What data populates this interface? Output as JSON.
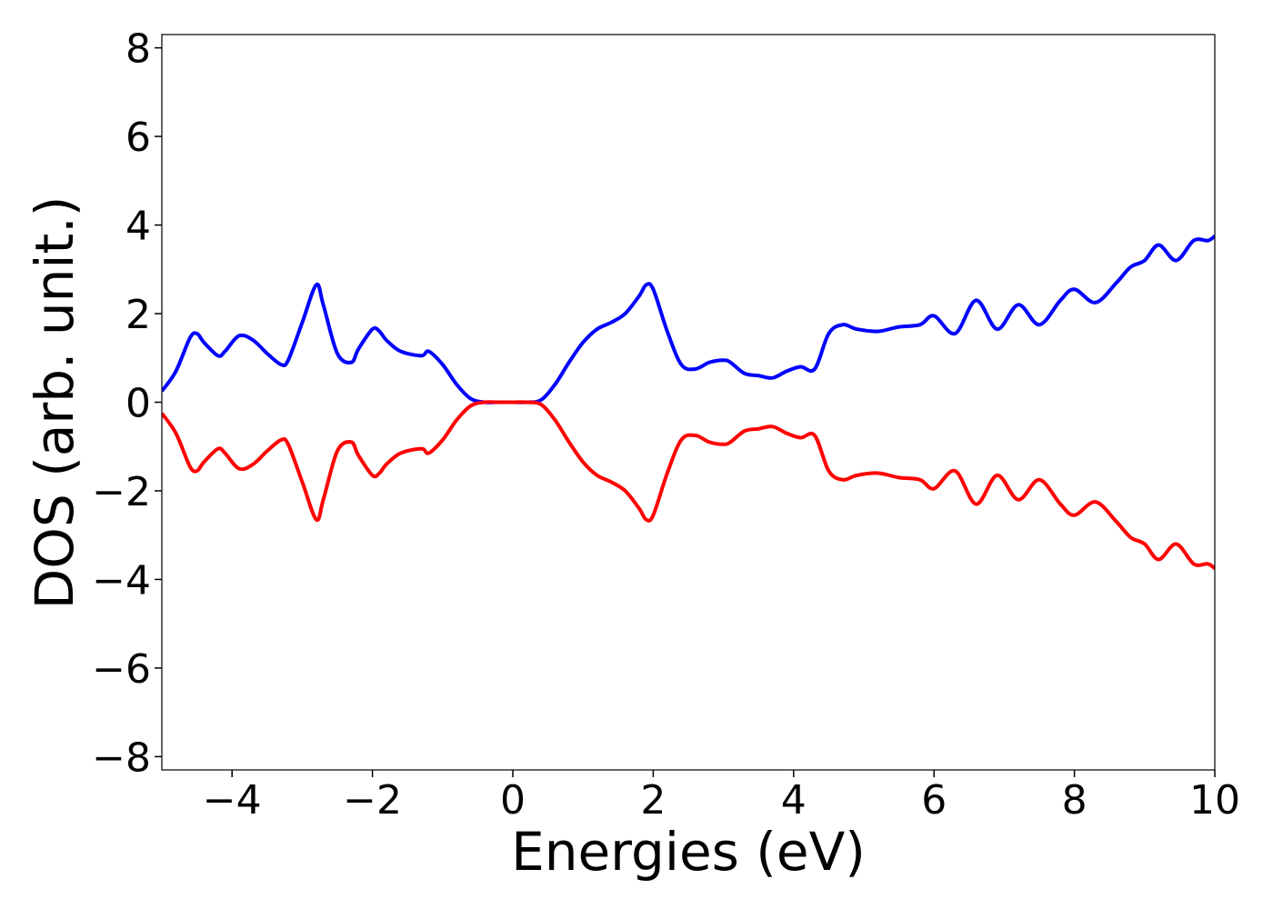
{
  "chart_data": {
    "type": "line",
    "title": "",
    "xlabel": "Energies (eV)",
    "ylabel": "DOS (arb. unit.)",
    "xlim": [
      -5,
      10
    ],
    "ylim": [
      -8.3,
      8.3
    ],
    "xticks": [
      -4,
      -2,
      0,
      2,
      4,
      6,
      8,
      10
    ],
    "xtick_labels": [
      "−4",
      "−2",
      "0",
      "2",
      "4",
      "6",
      "8",
      "10"
    ],
    "yticks": [
      8,
      6,
      4,
      2,
      0,
      -2,
      -4,
      -6,
      -8
    ],
    "ytick_labels": [
      "8",
      "6",
      "4",
      "2",
      "0",
      "−2",
      "−4",
      "−6",
      "−8"
    ],
    "grid": false,
    "legend": false,
    "series": [
      {
        "color": "#0000ff",
        "x": [
          -5.0,
          -4.8,
          -4.6,
          -4.5,
          -4.4,
          -4.2,
          -4.1,
          -3.9,
          -3.7,
          -3.5,
          -3.3,
          -3.2,
          -3.0,
          -2.8,
          -2.7,
          -2.5,
          -2.3,
          -2.2,
          -2.0,
          -1.9,
          -1.8,
          -1.6,
          -1.3,
          -1.2,
          -1.0,
          -0.8,
          -0.6,
          -0.4,
          -0.2,
          0.0,
          0.2,
          0.4,
          0.6,
          0.8,
          1.0,
          1.2,
          1.4,
          1.6,
          1.8,
          1.9,
          2.0,
          2.2,
          2.4,
          2.6,
          2.8,
          3.0,
          3.1,
          3.3,
          3.5,
          3.7,
          3.9,
          4.1,
          4.3,
          4.5,
          4.7,
          4.9,
          5.2,
          5.5,
          5.8,
          6.0,
          6.3,
          6.6,
          6.9,
          7.2,
          7.5,
          7.8,
          8.0,
          8.3,
          8.6,
          8.8,
          9.0,
          9.2,
          9.45,
          9.7,
          9.9,
          10.0
        ],
        "y": [
          0.25,
          0.7,
          1.45,
          1.55,
          1.35,
          1.05,
          1.15,
          1.5,
          1.4,
          1.1,
          0.85,
          0.95,
          1.8,
          2.65,
          2.2,
          1.1,
          0.9,
          1.2,
          1.65,
          1.6,
          1.4,
          1.15,
          1.05,
          1.15,
          0.85,
          0.4,
          0.08,
          0.0,
          0.0,
          0.0,
          0.0,
          0.05,
          0.4,
          0.9,
          1.35,
          1.65,
          1.8,
          2.0,
          2.4,
          2.65,
          2.55,
          1.6,
          0.85,
          0.75,
          0.9,
          0.95,
          0.9,
          0.65,
          0.6,
          0.55,
          0.7,
          0.8,
          0.75,
          1.55,
          1.75,
          1.65,
          1.6,
          1.7,
          1.75,
          1.95,
          1.55,
          2.3,
          1.65,
          2.2,
          1.75,
          2.3,
          2.55,
          2.25,
          2.7,
          3.05,
          3.2,
          3.55,
          3.2,
          3.65,
          3.65,
          3.75
        ]
      },
      {
        "color": "#ff0000",
        "x": [
          -5.0,
          -4.8,
          -4.6,
          -4.5,
          -4.4,
          -4.2,
          -4.1,
          -3.9,
          -3.7,
          -3.5,
          -3.3,
          -3.2,
          -3.0,
          -2.8,
          -2.7,
          -2.5,
          -2.3,
          -2.2,
          -2.0,
          -1.9,
          -1.8,
          -1.6,
          -1.3,
          -1.2,
          -1.0,
          -0.8,
          -0.6,
          -0.4,
          -0.2,
          0.0,
          0.2,
          0.4,
          0.6,
          0.8,
          1.0,
          1.2,
          1.4,
          1.6,
          1.8,
          1.9,
          2.0,
          2.2,
          2.4,
          2.6,
          2.8,
          3.0,
          3.1,
          3.3,
          3.5,
          3.7,
          3.9,
          4.1,
          4.3,
          4.5,
          4.7,
          4.9,
          5.2,
          5.5,
          5.8,
          6.0,
          6.3,
          6.6,
          6.9,
          7.2,
          7.5,
          7.8,
          8.0,
          8.3,
          8.6,
          8.8,
          9.0,
          9.2,
          9.45,
          9.7,
          9.9,
          10.0
        ],
        "y": [
          -0.25,
          -0.7,
          -1.45,
          -1.55,
          -1.35,
          -1.05,
          -1.15,
          -1.5,
          -1.4,
          -1.1,
          -0.85,
          -0.95,
          -1.8,
          -2.65,
          -2.2,
          -1.1,
          -0.9,
          -1.2,
          -1.65,
          -1.6,
          -1.4,
          -1.15,
          -1.05,
          -1.15,
          -0.85,
          -0.4,
          -0.08,
          0.0,
          0.0,
          0.0,
          0.0,
          -0.05,
          -0.4,
          -0.9,
          -1.35,
          -1.65,
          -1.8,
          -2.0,
          -2.4,
          -2.65,
          -2.55,
          -1.6,
          -0.85,
          -0.75,
          -0.9,
          -0.95,
          -0.9,
          -0.65,
          -0.6,
          -0.55,
          -0.7,
          -0.8,
          -0.75,
          -1.55,
          -1.75,
          -1.65,
          -1.6,
          -1.7,
          -1.75,
          -1.95,
          -1.55,
          -2.3,
          -1.65,
          -2.2,
          -1.75,
          -2.3,
          -2.55,
          -2.25,
          -2.7,
          -3.05,
          -3.2,
          -3.55,
          -3.2,
          -3.65,
          -3.65,
          -3.75
        ]
      }
    ]
  }
}
